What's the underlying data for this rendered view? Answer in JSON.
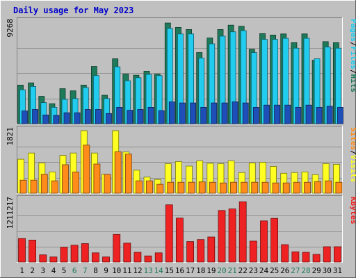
{
  "chart_data": {
    "title": "Daily usage for May 2023",
    "type": "bar",
    "categories": [
      "1",
      "2",
      "3",
      "4",
      "5",
      "6",
      "7",
      "8",
      "9",
      "10",
      "11",
      "12",
      "13",
      "14",
      "15",
      "16",
      "17",
      "18",
      "19",
      "20",
      "21",
      "22",
      "23",
      "24",
      "25",
      "26",
      "27",
      "28",
      "29",
      "30",
      "31"
    ],
    "weekend_days": [
      "6",
      "7",
      "13",
      "14",
      "20",
      "21",
      "27",
      "28"
    ],
    "colors": {
      "title": "#0000cc",
      "hits": "#1f7a5a",
      "files": "#22ccee",
      "pages": "#1e4fb8",
      "visits": "#ffff22",
      "sites": "#ff8c1a",
      "kbytes": "#ee2222",
      "weekday_label": "#000000",
      "weekend_label": "#1f7a5a",
      "plot_background": "#c0c0c0"
    },
    "panels": [
      {
        "id": "hits_files_pages",
        "max_label": "9268",
        "ymax": 9268,
        "legend": [
          {
            "text": "Hits",
            "color": "#1f7a5a"
          },
          {
            "text": "Files",
            "color": "#22ccee"
          },
          {
            "text": "Pages",
            "color": "#22ccee"
          }
        ],
        "series": [
          {
            "name": "Hits",
            "values": [
              3530,
              3730,
              2500,
              1830,
              3200,
              3000,
              3530,
              5230,
              2600,
              5930,
              4530,
              4430,
              4800,
              4530,
              9200,
              8800,
              8600,
              6500,
              7830,
              8600,
              9000,
              8900,
              6800,
              8230,
              8100,
              8200,
              7400,
              8200,
              5800,
              7500,
              7400
            ]
          },
          {
            "name": "Files",
            "values": [
              3100,
              3400,
              1930,
              1500,
              2230,
              2300,
              3300,
              4400,
              2300,
              5200,
              3930,
              4200,
              4500,
              4400,
              8700,
              8200,
              8200,
              6000,
              7300,
              8000,
              8400,
              8500,
              6500,
              7700,
              7700,
              7800,
              6900,
              7800,
              5930,
              7000,
              6900
            ]
          },
          {
            "name": "Pages",
            "values": [
              1170,
              1300,
              800,
              770,
              1000,
              1000,
              1300,
              1300,
              930,
              1500,
              1230,
              1300,
              1500,
              1200,
              2000,
              1900,
              1900,
              1500,
              1900,
              1900,
              2000,
              1900,
              1500,
              1700,
              1700,
              1700,
              1500,
              1700,
              1500,
              1600,
              1500
            ]
          }
        ]
      },
      {
        "id": "visits_sites",
        "max_label": "1821",
        "ymax": 1821,
        "legend": [
          {
            "text": "Visits",
            "color": "#ffff22"
          },
          {
            "text": "Sites",
            "color": "#ff8c1a"
          }
        ],
        "series": [
          {
            "name": "Visits",
            "values": [
              990,
              1170,
              880,
              620,
              1100,
              1170,
              1821,
              1170,
              550,
              1821,
              1200,
              670,
              470,
              400,
              860,
              920,
              790,
              940,
              870,
              860,
              940,
              600,
              880,
              900,
              780,
              580,
              600,
              620,
              540,
              860,
              840
            ]
          },
          {
            "name": "Sites",
            "values": [
              380,
              380,
              550,
              360,
              830,
              620,
              1400,
              850,
              550,
              1210,
              1140,
              360,
              360,
              260,
              320,
              320,
              320,
              330,
              320,
              300,
              320,
              320,
              320,
              320,
              300,
              300,
              320,
              320,
              340,
              360,
              320
            ]
          }
        ]
      },
      {
        "id": "kbytes",
        "max_label": "1211217",
        "ymax": 1211217,
        "legend": [
          {
            "text": "KBytes",
            "color": "#ee2222"
          }
        ],
        "series": [
          {
            "name": "KBytes",
            "values": [
              460000,
              430000,
              140000,
              100000,
              290000,
              330000,
              360000,
              180000,
              100000,
              540000,
              370000,
              190000,
              120000,
              180000,
              1120000,
              860000,
              400000,
              440000,
              490000,
              1010000,
              1040000,
              1180000,
              410000,
              805000,
              855000,
              340000,
              200000,
              190000,
              150000,
              300000,
              300000
            ]
          }
        ]
      }
    ]
  }
}
